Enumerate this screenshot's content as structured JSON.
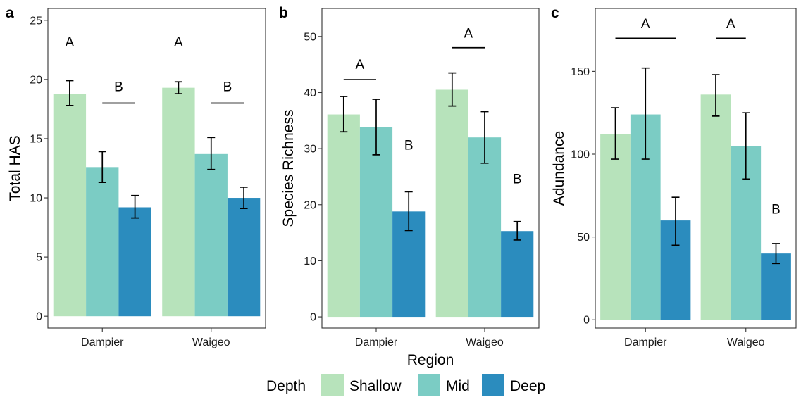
{
  "chart_data": [
    {
      "type": "bar",
      "panel_letter": "a",
      "categories": [
        "Dampier",
        "Waigeo"
      ],
      "series": [
        {
          "name": "Shallow",
          "values": [
            18.8,
            19.3
          ],
          "error_low": [
            17.8,
            18.8
          ],
          "error_high": [
            19.9,
            19.8
          ]
        },
        {
          "name": "Mid",
          "values": [
            12.6,
            13.7
          ],
          "error_low": [
            11.3,
            12.4
          ],
          "error_high": [
            13.9,
            15.1
          ]
        },
        {
          "name": "Deep",
          "values": [
            9.2,
            10.0
          ],
          "error_low": [
            8.3,
            9.1
          ],
          "error_high": [
            10.2,
            10.9
          ]
        }
      ],
      "ylabel": "Total HAS",
      "ylim": [
        -1,
        26
      ],
      "yticks": [
        0,
        5,
        10,
        15,
        20,
        25
      ],
      "annotations": [
        {
          "text": "A",
          "category": 0,
          "series": 0,
          "y": 22.8
        },
        {
          "text": "A",
          "category": 1,
          "series": 0,
          "y": 22.8
        },
        {
          "text": "B",
          "category": 0,
          "bracket": [
            1,
            2
          ],
          "line_y": 18.0,
          "y": 19.0
        },
        {
          "text": "B",
          "category": 1,
          "bracket": [
            1,
            2
          ],
          "line_y": 18.0,
          "y": 19.0
        }
      ]
    },
    {
      "type": "bar",
      "panel_letter": "b",
      "categories": [
        "Dampier",
        "Waigeo"
      ],
      "series": [
        {
          "name": "Shallow",
          "values": [
            36.1,
            40.5
          ],
          "error_low": [
            33.0,
            37.6
          ],
          "error_high": [
            39.3,
            43.5
          ]
        },
        {
          "name": "Mid",
          "values": [
            33.8,
            32.0
          ],
          "error_low": [
            28.9,
            27.4
          ],
          "error_high": [
            38.8,
            36.6
          ]
        },
        {
          "name": "Deep",
          "values": [
            18.8,
            15.3
          ],
          "error_low": [
            15.4,
            13.7
          ],
          "error_high": [
            22.3,
            17.0
          ]
        }
      ],
      "xlabel": "Region",
      "ylabel": "Species Richness",
      "ylim": [
        -2,
        55
      ],
      "yticks": [
        0,
        10,
        20,
        30,
        40,
        50
      ],
      "annotations": [
        {
          "text": "A",
          "category": 0,
          "bracket": [
            0,
            1
          ],
          "line_y": 42.3,
          "y": 44.2
        },
        {
          "text": "A",
          "category": 1,
          "bracket": [
            0,
            1
          ],
          "line_y": 48.0,
          "y": 49.8
        },
        {
          "text": "B",
          "category": 0,
          "series": 2,
          "y": 29.8
        },
        {
          "text": "B",
          "category": 1,
          "series": 2,
          "y": 23.8
        }
      ]
    },
    {
      "type": "bar",
      "panel_letter": "c",
      "categories": [
        "Dampier",
        "Waigeo"
      ],
      "series": [
        {
          "name": "Shallow",
          "values": [
            112,
            136
          ],
          "error_low": [
            97,
            123
          ],
          "error_high": [
            128,
            148
          ]
        },
        {
          "name": "Mid",
          "values": [
            124,
            105
          ],
          "error_low": [
            97,
            85
          ],
          "error_high": [
            152,
            125
          ]
        },
        {
          "name": "Deep",
          "values": [
            60,
            40
          ],
          "error_low": [
            45,
            34
          ],
          "error_high": [
            74,
            46
          ]
        }
      ],
      "ylabel": "Adundance",
      "ylim": [
        -5,
        188
      ],
      "yticks": [
        0,
        50,
        100,
        150
      ],
      "annotations": [
        {
          "text": "A",
          "category": 0,
          "bracket": [
            0,
            2
          ],
          "line_y": 170,
          "y": 176
        },
        {
          "text": "A",
          "category": 1,
          "bracket": [
            0,
            1
          ],
          "line_y": 170,
          "y": 176
        },
        {
          "text": "B",
          "category": 1,
          "series": 2,
          "y": 64
        }
      ]
    }
  ],
  "legend": {
    "title": "Depth",
    "position": "bottom",
    "items": [
      "Shallow",
      "Mid",
      "Deep"
    ]
  },
  "colors": {
    "Shallow": "#b7e3bb",
    "Mid": "#7bccc4",
    "Deep": "#2b8cbe",
    "axis": "#333333",
    "text": "#000000"
  }
}
